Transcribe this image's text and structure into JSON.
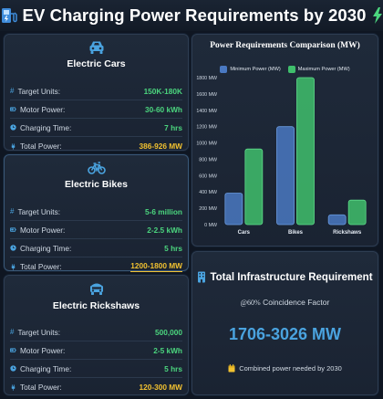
{
  "header": {
    "title": "EV Charging Power Requirements by 2030"
  },
  "colors": {
    "green": "#4bd57e",
    "yellow": "#f2c230",
    "blue": "#4aa3df",
    "bar_min": "#4a79c2",
    "bar_max": "#3fbf6c"
  },
  "vehicles": [
    {
      "title": "Electric Cars",
      "icon": "car-icon",
      "rows": [
        {
          "label": "Target Units:",
          "value": "150K-180K"
        },
        {
          "label": "Motor Power:",
          "value": "30-60 kWh"
        },
        {
          "label": "Charging Time:",
          "value": "7 hrs"
        },
        {
          "label": "Total Power:",
          "value": "386-926 MW"
        }
      ]
    },
    {
      "title": "Electric Bikes",
      "icon": "bike-icon",
      "rows": [
        {
          "label": "Target Units:",
          "value": "5-6 million"
        },
        {
          "label": "Motor Power:",
          "value": "2-2.5 kWh"
        },
        {
          "label": "Charging Time:",
          "value": "5 hrs"
        },
        {
          "label": "Total Power:",
          "value": "1200-1800 MW"
        }
      ]
    },
    {
      "title": "Electric Rickshaws",
      "icon": "rickshaw-icon",
      "rows": [
        {
          "label": "Target Units:",
          "value": "500,000"
        },
        {
          "label": "Motor Power:",
          "value": "2-5 kWh"
        },
        {
          "label": "Charging Time:",
          "value": "5 hrs"
        },
        {
          "label": "Total Power:",
          "value": "120-300 MW"
        }
      ]
    }
  ],
  "chart_data": {
    "type": "bar",
    "title": "Power Requirements Comparison (MW)",
    "categories": [
      "Cars",
      "Bikes",
      "Rickshaws"
    ],
    "series": [
      {
        "name": "Minimum Power (MW)",
        "values": [
          386,
          1200,
          120
        ]
      },
      {
        "name": "Maximum Power (MW)",
        "values": [
          926,
          1800,
          300
        ]
      }
    ],
    "ylim": [
      0,
      1800
    ],
    "yticks": [
      0,
      200,
      400,
      600,
      800,
      1000,
      1200,
      1400,
      1600,
      1800
    ],
    "ytick_labels": [
      "0 MW",
      "200 MW",
      "400 MW",
      "600 MW",
      "800 MW",
      "1000 MW",
      "1200 MW",
      "1400 MW",
      "1600 MW",
      "1800 MW"
    ],
    "legend_position": "top-center",
    "grid": false
  },
  "infrastructure": {
    "title": "Total Infrastructure Requirement",
    "factor_pct": "@60%",
    "factor_label": "Coincidence Factor",
    "total": "1706-3026 MW",
    "note": "Combined power needed by 2030"
  }
}
